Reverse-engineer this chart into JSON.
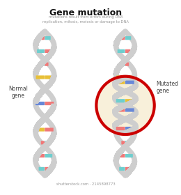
{
  "title": "Gene mutation",
  "subtitle": "mutations result from errors during DNA\nreplication, mitosis, meiosis or damage to DNA",
  "normal_label": "Normal\ngene",
  "mutated_label": "Mutated\ngene",
  "bg_color": "#ffffff",
  "helix_color": "#cecece",
  "helix_shadow": "#b8b8b8",
  "base_colors": {
    "teal": "#6ecece",
    "pink": "#f07878",
    "blue": "#6888d8",
    "yellow": "#e8c038",
    "red": "#e05050"
  },
  "circle_color": "#cc0000",
  "circle_fill": "#f8f0d8",
  "title_fontsize": 9,
  "subtitle_fontsize": 3.8,
  "label_fontsize": 5.5,
  "watermark": "shutterstock.com · 2145898773"
}
